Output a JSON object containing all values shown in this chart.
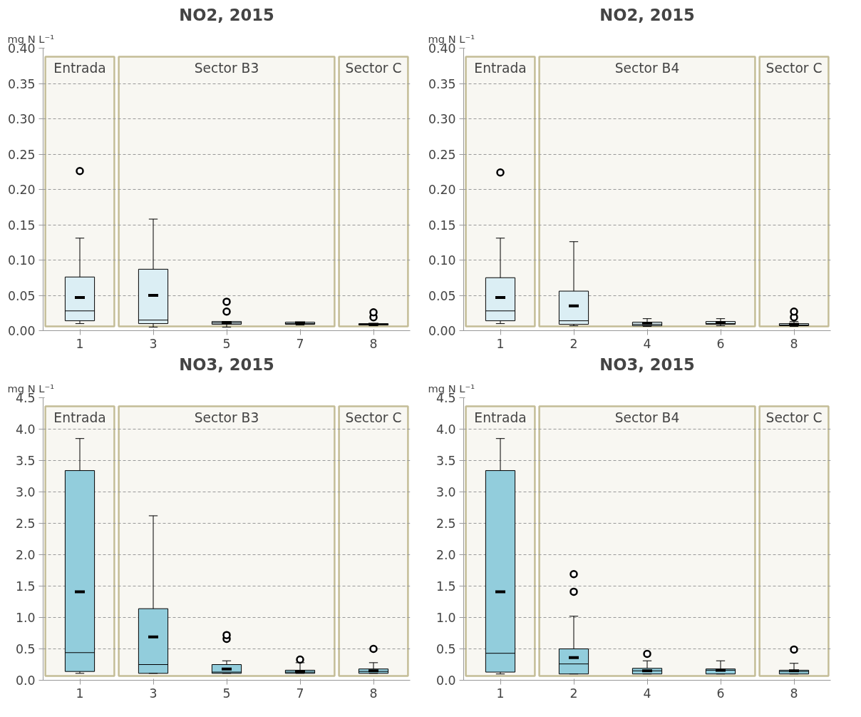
{
  "chart_data": [
    {
      "type": "box",
      "title": "NO2, 2015",
      "ylabel": "mg N L⁻¹",
      "categories": [
        "1",
        "3",
        "5",
        "7",
        "8"
      ],
      "color": "#dbeef4",
      "grid": "y",
      "ylim": [
        0,
        0.4
      ],
      "yticks": [
        {
          "value": 0,
          "label": "0.00"
        },
        {
          "value": 0.05,
          "label": "0.05"
        },
        {
          "value": 0.1,
          "label": "0.10"
        },
        {
          "value": 0.15,
          "label": "0.15"
        },
        {
          "value": 0.2,
          "label": "0.20"
        },
        {
          "value": 0.25,
          "label": "0.25"
        },
        {
          "value": 0.3,
          "label": "0.30"
        },
        {
          "value": 0.35,
          "label": "0.35"
        },
        {
          "value": 0.4,
          "label": "0.40"
        }
      ],
      "boxes": [
        {
          "low": 0.01,
          "q1": 0.014,
          "median": 0.028,
          "q3": 0.076,
          "high": 0.131,
          "mean": 0.047,
          "outliers": [
            0.226
          ]
        },
        {
          "low": 0.005,
          "q1": 0.01,
          "median": 0.015,
          "q3": 0.087,
          "high": 0.158,
          "mean": 0.05
        },
        {
          "low": 0.005,
          "q1": 0.009,
          "median": 0.011,
          "q3": 0.013,
          "high": 0.013,
          "mean": 0.011,
          "outliers": [
            0.027,
            0.041
          ]
        },
        {
          "low": 0.008,
          "q1": 0.009,
          "median": 0.01,
          "q3": 0.012,
          "high": 0.012,
          "mean": 0.011
        },
        {
          "low": 0.007,
          "q1": 0.008,
          "median": 0.009,
          "q3": 0.01,
          "high": 0.01,
          "mean": 0.009,
          "outliers": [
            0.019,
            0.026
          ]
        }
      ],
      "bands": [
        {
          "axis": "x",
          "from": "1",
          "to": "1",
          "label": "Entrada",
          "color": "#c4bd97"
        },
        {
          "axis": "x",
          "from": "3",
          "to": "7",
          "label": "Sector B3",
          "color": "#c4bd97"
        },
        {
          "axis": "x",
          "from": "8",
          "to": "8",
          "label": "Sector C",
          "color": "#c4bd97"
        }
      ]
    },
    {
      "type": "box",
      "title": "NO2, 2015",
      "ylabel": "mg N L⁻¹",
      "categories": [
        "1",
        "2",
        "4",
        "6",
        "8"
      ],
      "color": "#dbeef4",
      "grid": "y",
      "ylim": [
        0,
        0.4
      ],
      "yticks": [
        {
          "value": 0,
          "label": "0.00"
        },
        {
          "value": 0.05,
          "label": "0.05"
        },
        {
          "value": 0.1,
          "label": "0.10"
        },
        {
          "value": 0.15,
          "label": "0.15"
        },
        {
          "value": 0.2,
          "label": "0.20"
        },
        {
          "value": 0.25,
          "label": "0.25"
        },
        {
          "value": 0.3,
          "label": "0.30"
        },
        {
          "value": 0.35,
          "label": "0.35"
        },
        {
          "value": 0.4,
          "label": "0.40"
        }
      ],
      "boxes": [
        {
          "low": 0.01,
          "q1": 0.014,
          "median": 0.028,
          "q3": 0.075,
          "high": 0.131,
          "mean": 0.047,
          "outliers": [
            0.224
          ]
        },
        {
          "low": 0.007,
          "q1": 0.009,
          "median": 0.014,
          "q3": 0.056,
          "high": 0.126,
          "mean": 0.035
        },
        {
          "low": 0.006,
          "q1": 0.007,
          "median": 0.009,
          "q3": 0.012,
          "high": 0.017,
          "mean": 0.01
        },
        {
          "low": 0.007,
          "q1": 0.009,
          "median": 0.01,
          "q3": 0.013,
          "high": 0.017,
          "mean": 0.011
        },
        {
          "low": 0.006,
          "q1": 0.007,
          "median": 0.008,
          "q3": 0.01,
          "high": 0.013,
          "mean": 0.009,
          "outliers": [
            0.019,
            0.027
          ]
        }
      ],
      "bands": [
        {
          "axis": "x",
          "from": "1",
          "to": "1",
          "label": "Entrada",
          "color": "#c4bd97"
        },
        {
          "axis": "x",
          "from": "2",
          "to": "6",
          "label": "Sector B4",
          "color": "#c4bd97"
        },
        {
          "axis": "x",
          "from": "8",
          "to": "8",
          "label": "Sector C",
          "color": "#c4bd97"
        }
      ]
    },
    {
      "type": "box",
      "title": "NO3, 2015",
      "ylabel": "mg N L⁻¹",
      "categories": [
        "1",
        "3",
        "5",
        "7",
        "8"
      ],
      "color": "#92cddc",
      "grid": "y",
      "ylim": [
        0,
        4.5
      ],
      "yticks": [
        {
          "value": 0,
          "label": "0.0"
        },
        {
          "value": 0.5,
          "label": "0.5"
        },
        {
          "value": 1,
          "label": "1.0"
        },
        {
          "value": 1.5,
          "label": "1.5"
        },
        {
          "value": 2,
          "label": "2.0"
        },
        {
          "value": 2.5,
          "label": "2.5"
        },
        {
          "value": 3,
          "label": "3.0"
        },
        {
          "value": 3.5,
          "label": "3.5"
        },
        {
          "value": 4,
          "label": "4.0"
        },
        {
          "value": 4.5,
          "label": "4.5"
        }
      ],
      "boxes": [
        {
          "low": 0.11,
          "q1": 0.14,
          "median": 0.44,
          "q3": 3.34,
          "high": 3.85,
          "mean": 1.41
        },
        {
          "low": 0.11,
          "q1": 0.11,
          "median": 0.25,
          "q3": 1.14,
          "high": 2.62,
          "mean": 0.69
        },
        {
          "low": 0.11,
          "q1": 0.11,
          "median": 0.13,
          "q3": 0.25,
          "high": 0.31,
          "mean": 0.18,
          "outliers": [
            0.66,
            0.72
          ]
        },
        {
          "low": 0.11,
          "q1": 0.11,
          "median": 0.13,
          "q3": 0.16,
          "high": 0.28,
          "mean": 0.14,
          "outliers": [
            0.33
          ]
        },
        {
          "low": 0.11,
          "q1": 0.11,
          "median": 0.14,
          "q3": 0.18,
          "high": 0.28,
          "mean": 0.15,
          "outliers": [
            0.5
          ]
        }
      ],
      "bands": [
        {
          "axis": "x",
          "from": "1",
          "to": "1",
          "label": "Entrada",
          "color": "#c4bd97"
        },
        {
          "axis": "x",
          "from": "3",
          "to": "7",
          "label": "Sector B3",
          "color": "#c4bd97"
        },
        {
          "axis": "x",
          "from": "8",
          "to": "8",
          "label": "Sector C",
          "color": "#c4bd97"
        }
      ]
    },
    {
      "type": "box",
      "title": "NO3, 2015",
      "ylabel": "mg N L⁻¹",
      "categories": [
        "1",
        "2",
        "4",
        "6",
        "8"
      ],
      "color": "#92cddc",
      "grid": "y",
      "ylim": [
        0,
        4.5
      ],
      "yticks": [
        {
          "value": 0,
          "label": "0.0"
        },
        {
          "value": 0.5,
          "label": "0.5"
        },
        {
          "value": 1,
          "label": "1.0"
        },
        {
          "value": 1.5,
          "label": "1.5"
        },
        {
          "value": 2,
          "label": "2.0"
        },
        {
          "value": 2.5,
          "label": "2.5"
        },
        {
          "value": 3,
          "label": "3.0"
        },
        {
          "value": 3.5,
          "label": "3.5"
        },
        {
          "value": 4,
          "label": "4.0"
        },
        {
          "value": 4.5,
          "label": "4.5"
        }
      ],
      "boxes": [
        {
          "low": 0.1,
          "q1": 0.13,
          "median": 0.43,
          "q3": 3.34,
          "high": 3.85,
          "mean": 1.41
        },
        {
          "low": 0.1,
          "q1": 0.1,
          "median": 0.26,
          "q3": 0.5,
          "high": 1.02,
          "mean": 0.36,
          "outliers": [
            1.41,
            1.69
          ]
        },
        {
          "low": 0.1,
          "q1": 0.1,
          "median": 0.15,
          "q3": 0.19,
          "high": 0.31,
          "mean": 0.15,
          "outliers": [
            0.42
          ]
        },
        {
          "low": 0.1,
          "q1": 0.1,
          "median": 0.16,
          "q3": 0.18,
          "high": 0.31,
          "mean": 0.16
        },
        {
          "low": 0.1,
          "q1": 0.1,
          "median": 0.14,
          "q3": 0.16,
          "high": 0.27,
          "mean": 0.15,
          "outliers": [
            0.49
          ]
        }
      ],
      "bands": [
        {
          "axis": "x",
          "from": "1",
          "to": "1",
          "label": "Entrada",
          "color": "#c4bd97"
        },
        {
          "axis": "x",
          "from": "2",
          "to": "6",
          "label": "Sector B4",
          "color": "#c4bd97"
        },
        {
          "axis": "x",
          "from": "8",
          "to": "8",
          "label": "Sector C",
          "color": "#c4bd97"
        }
      ]
    }
  ]
}
